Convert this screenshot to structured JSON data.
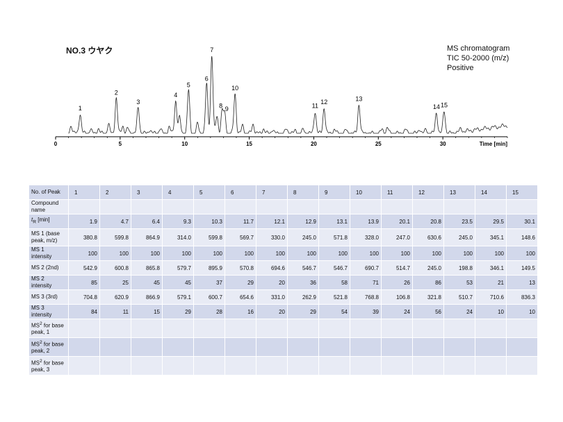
{
  "header": {
    "title": "NO.3 ウヤク",
    "info_lines": [
      "MS chromatogram",
      "TIC 50-2000 (m/z)",
      "Positive"
    ]
  },
  "chart_data": {
    "type": "line",
    "title": "NO.3 ウヤク",
    "xlabel": "Time [min]",
    "ylabel": "",
    "xlim": [
      0,
      35
    ],
    "x_ticks": [
      0,
      5,
      10,
      15,
      20,
      25,
      30
    ],
    "peaks": [
      {
        "label": "1",
        "rt": 1.9,
        "height": 0.25
      },
      {
        "label": "2",
        "rt": 4.7,
        "height": 0.45
      },
      {
        "label": "3",
        "rt": 6.4,
        "height": 0.33
      },
      {
        "label": "4",
        "rt": 9.3,
        "height": 0.42
      },
      {
        "label": "5",
        "rt": 10.3,
        "height": 0.55
      },
      {
        "label": "6",
        "rt": 11.7,
        "height": 0.63
      },
      {
        "label": "7",
        "rt": 12.1,
        "height": 1.0
      },
      {
        "label": "8",
        "rt": 12.9,
        "height": 0.28
      },
      {
        "label": "9",
        "rt": 13.1,
        "height": 0.24
      },
      {
        "label": "10",
        "rt": 13.9,
        "height": 0.51
      },
      {
        "label": "11",
        "rt": 20.1,
        "height": 0.28
      },
      {
        "label": "12",
        "rt": 20.8,
        "height": 0.33
      },
      {
        "label": "13",
        "rt": 23.5,
        "height": 0.37
      },
      {
        "label": "14",
        "rt": 29.5,
        "height": 0.27
      },
      {
        "label": "15",
        "rt": 30.1,
        "height": 0.29
      }
    ],
    "minor_peaks": [
      {
        "rt": 1.2,
        "height": 0.1
      },
      {
        "rt": 2.7,
        "height": 0.05
      },
      {
        "rt": 3.3,
        "height": 0.06
      },
      {
        "rt": 4.1,
        "height": 0.11
      },
      {
        "rt": 5.2,
        "height": 0.1
      },
      {
        "rt": 5.6,
        "height": 0.06
      },
      {
        "rt": 7.3,
        "height": 0.05
      },
      {
        "rt": 8.1,
        "height": 0.06
      },
      {
        "rt": 8.8,
        "height": 0.08
      },
      {
        "rt": 9.6,
        "height": 0.2
      },
      {
        "rt": 11.0,
        "height": 0.12
      },
      {
        "rt": 12.5,
        "height": 0.22
      },
      {
        "rt": 14.5,
        "height": 0.1
      },
      {
        "rt": 15.3,
        "height": 0.12
      },
      {
        "rt": 16.1,
        "height": 0.06
      },
      {
        "rt": 16.8,
        "height": 0.05
      },
      {
        "rt": 17.9,
        "height": 0.06
      },
      {
        "rt": 18.6,
        "height": 0.04
      },
      {
        "rt": 19.2,
        "height": 0.05
      },
      {
        "rt": 21.6,
        "height": 0.05
      },
      {
        "rt": 22.5,
        "height": 0.04
      },
      {
        "rt": 25.3,
        "height": 0.05
      },
      {
        "rt": 25.7,
        "height": 0.07
      },
      {
        "rt": 27.1,
        "height": 0.05
      },
      {
        "rt": 28.2,
        "height": 0.06
      },
      {
        "rt": 28.7,
        "height": 0.05
      },
      {
        "rt": 31.4,
        "height": 0.04
      }
    ]
  },
  "table": {
    "header_label": "No. of Peak",
    "peaks": [
      "1",
      "2",
      "3",
      "4",
      "5",
      "6",
      "7",
      "8",
      "9",
      "10",
      "11",
      "12",
      "13",
      "14",
      "15"
    ],
    "rows": [
      {
        "label": "Compound name",
        "values": [
          "",
          "",
          "",
          "",
          "",
          "",
          "",
          "",
          "",
          "",
          "",
          "",
          "",
          "",
          ""
        ]
      },
      {
        "label": "tR [min]",
        "values": [
          "1.9",
          "4.7",
          "6.4",
          "9.3",
          "10.3",
          "11.7",
          "12.1",
          "12.9",
          "13.1",
          "13.9",
          "20.1",
          "20.8",
          "23.5",
          "29.5",
          "30.1"
        ]
      },
      {
        "label": "MS 1 (base peak, m/z)",
        "values": [
          "380.8",
          "599.8",
          "864.9",
          "314.0",
          "599.8",
          "569.7",
          "330.0",
          "245.0",
          "571.8",
          "328.0",
          "247.0",
          "630.6",
          "245.0",
          "345.1",
          "148.6"
        ]
      },
      {
        "label": "MS 1 intensity",
        "values": [
          "100",
          "100",
          "100",
          "100",
          "100",
          "100",
          "100",
          "100",
          "100",
          "100",
          "100",
          "100",
          "100",
          "100",
          "100"
        ]
      },
      {
        "label": "MS 2 (2nd)",
        "values": [
          "542.9",
          "600.8",
          "865.8",
          "579.7",
          "895.9",
          "570.8",
          "694.6",
          "546.7",
          "546.7",
          "690.7",
          "514.7",
          "245.0",
          "198.8",
          "346.1",
          "149.5"
        ]
      },
      {
        "label": "MS 2 intensity",
        "values": [
          "85",
          "25",
          "45",
          "45",
          "37",
          "29",
          "20",
          "36",
          "58",
          "71",
          "26",
          "86",
          "53",
          "21",
          "13"
        ]
      },
      {
        "label": "MS 3 (3rd)",
        "values": [
          "704.8",
          "620.9",
          "866.9",
          "579.1",
          "600.7",
          "654.6",
          "331.0",
          "262.9",
          "521.8",
          "768.8",
          "106.8",
          "321.8",
          "510.7",
          "710.6",
          "836.3"
        ]
      },
      {
        "label": "MS 3 intensity",
        "values": [
          "84",
          "11",
          "15",
          "29",
          "28",
          "16",
          "20",
          "29",
          "54",
          "39",
          "24",
          "56",
          "24",
          "10",
          "10"
        ]
      },
      {
        "label": "MS² for base peak, 1",
        "values": [
          "",
          "",
          "",
          "",
          "",
          "",
          "",
          "",
          "",
          "",
          "",
          "",
          "",
          "",
          ""
        ]
      },
      {
        "label": "MS² for base peak, 2",
        "values": [
          "",
          "",
          "",
          "",
          "",
          "",
          "",
          "",
          "",
          "",
          "",
          "",
          "",
          "",
          ""
        ]
      },
      {
        "label": "MS² for base peak, 3",
        "values": [
          "",
          "",
          "",
          "",
          "",
          "",
          "",
          "",
          "",
          "",
          "",
          "",
          "",
          "",
          ""
        ]
      }
    ]
  }
}
